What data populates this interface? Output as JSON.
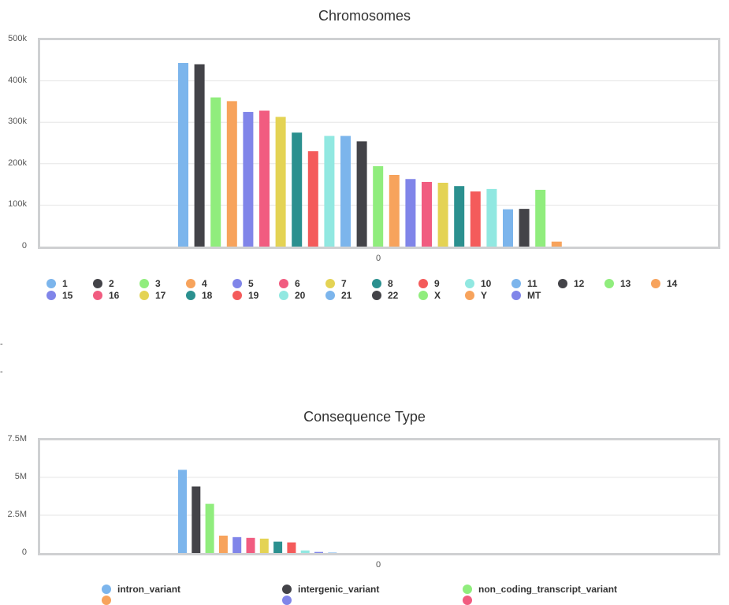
{
  "chart_data": [
    {
      "type": "bar",
      "title": "Chromosomes",
      "xlabel": "",
      "ylabel": "",
      "x_ticks": [
        "0"
      ],
      "y_ticks": [
        "0",
        "100k",
        "200k",
        "300k",
        "400k",
        "500k"
      ],
      "ylim": [
        0,
        500000
      ],
      "grid": true,
      "legend_position": "bottom",
      "series": [
        {
          "name": "1",
          "value": 443000,
          "color": "#7cb5ec"
        },
        {
          "name": "2",
          "value": 440000,
          "color": "#434348"
        },
        {
          "name": "3",
          "value": 360000,
          "color": "#90ed7d"
        },
        {
          "name": "4",
          "value": 351000,
          "color": "#f7a35c"
        },
        {
          "name": "5",
          "value": 325000,
          "color": "#8085e9"
        },
        {
          "name": "6",
          "value": 328000,
          "color": "#f15c80"
        },
        {
          "name": "7",
          "value": 313000,
          "color": "#e4d354"
        },
        {
          "name": "8",
          "value": 275000,
          "color": "#2b908f"
        },
        {
          "name": "9",
          "value": 230000,
          "color": "#f45b5b"
        },
        {
          "name": "10",
          "value": 267000,
          "color": "#91e8e1"
        },
        {
          "name": "11",
          "value": 267000,
          "color": "#7cb5ec"
        },
        {
          "name": "12",
          "value": 254000,
          "color": "#434348"
        },
        {
          "name": "13",
          "value": 194000,
          "color": "#90ed7d"
        },
        {
          "name": "14",
          "value": 173000,
          "color": "#f7a35c"
        },
        {
          "name": "15",
          "value": 163000,
          "color": "#8085e9"
        },
        {
          "name": "16",
          "value": 156000,
          "color": "#f15c80"
        },
        {
          "name": "17",
          "value": 154000,
          "color": "#e4d354"
        },
        {
          "name": "18",
          "value": 146000,
          "color": "#2b908f"
        },
        {
          "name": "19",
          "value": 133000,
          "color": "#f45b5b"
        },
        {
          "name": "20",
          "value": 139000,
          "color": "#91e8e1"
        },
        {
          "name": "21",
          "value": 90000,
          "color": "#7cb5ec"
        },
        {
          "name": "22",
          "value": 91000,
          "color": "#434348"
        },
        {
          "name": "X",
          "value": 137000,
          "color": "#90ed7d"
        },
        {
          "name": "Y",
          "value": 12000,
          "color": "#f7a35c"
        },
        {
          "name": "MT",
          "value": 0,
          "color": "#8085e9"
        }
      ]
    },
    {
      "type": "bar",
      "title": "Consequence Type",
      "xlabel": "",
      "ylabel": "",
      "x_ticks": [
        "0"
      ],
      "y_ticks": [
        "0",
        "2.5M",
        "5M",
        "7.5M"
      ],
      "ylim": [
        0,
        7500000
      ],
      "grid": true,
      "legend_position": "bottom",
      "series": [
        {
          "name": "intron_variant",
          "value": 5500000,
          "color": "#7cb5ec"
        },
        {
          "name": "intergenic_variant",
          "value": 4400000,
          "color": "#434348"
        },
        {
          "name": "non_coding_transcript_variant",
          "value": 3250000,
          "color": "#90ed7d"
        },
        {
          "name": "",
          "value": 1150000,
          "color": "#f7a35c"
        },
        {
          "name": "",
          "value": 1050000,
          "color": "#8085e9"
        },
        {
          "name": "",
          "value": 1000000,
          "color": "#f15c80"
        },
        {
          "name": "",
          "value": 950000,
          "color": "#e4d354"
        },
        {
          "name": "",
          "value": 750000,
          "color": "#2b908f"
        },
        {
          "name": "",
          "value": 700000,
          "color": "#f45b5b"
        },
        {
          "name": "",
          "value": 170000,
          "color": "#91e8e1"
        },
        {
          "name": "",
          "value": 70000,
          "color": "#8085e9"
        },
        {
          "name": "",
          "value": 30000,
          "color": "#7cb5ec"
        }
      ]
    }
  ],
  "side_marks": [
    "-",
    "-"
  ]
}
